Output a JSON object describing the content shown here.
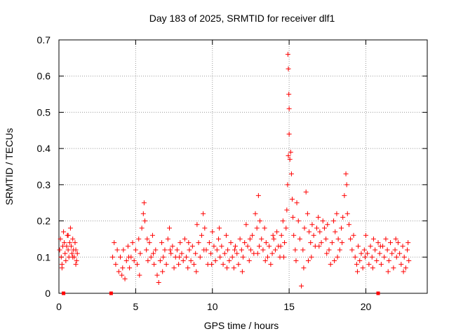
{
  "chart_data": {
    "type": "scatter",
    "title": "Day 183 of 2025, SRMTID for receiver dlf1",
    "xlabel": "GPS time / hours",
    "ylabel": "SRMTID / TECUs",
    "xlim": [
      0,
      24
    ],
    "ylim": [
      0,
      0.7
    ],
    "xticks": [
      0,
      5,
      10,
      15,
      20
    ],
    "yticks": [
      0,
      0.1,
      0.2,
      0.3,
      0.4,
      0.5,
      0.6,
      0.7
    ],
    "ytick_labels": [
      "0",
      "0.1",
      "0.2",
      "0.3",
      "0.4",
      "0.5",
      "0.6",
      "0.7"
    ],
    "grid": true,
    "marker": "plus",
    "color": "#ff0000",
    "zero_markers_x": [
      0.3,
      3.4,
      20.8
    ],
    "series": [
      {
        "name": "dlf1",
        "points": [
          [
            0.05,
            0.12
          ],
          [
            0.1,
            0.15
          ],
          [
            0.15,
            0.1
          ],
          [
            0.2,
            0.08
          ],
          [
            0.25,
            0.13
          ],
          [
            0.3,
            0.17
          ],
          [
            0.35,
            0.14
          ],
          [
            0.4,
            0.11
          ],
          [
            0.45,
            0.09
          ],
          [
            0.5,
            0.13
          ],
          [
            0.55,
            0.16
          ],
          [
            0.6,
            0.12
          ],
          [
            0.65,
            0.1
          ],
          [
            0.7,
            0.14
          ],
          [
            0.75,
            0.18
          ],
          [
            0.8,
            0.13
          ],
          [
            0.85,
            0.11
          ],
          [
            0.9,
            0.15
          ],
          [
            0.95,
            0.12
          ],
          [
            1.0,
            0.1
          ],
          [
            1.05,
            0.14
          ],
          [
            1.1,
            0.12
          ],
          [
            1.15,
            0.09
          ],
          [
            1.2,
            0.11
          ],
          [
            0.2,
            0.07
          ],
          [
            0.6,
            0.16
          ],
          [
            0.9,
            0.1
          ],
          [
            1.1,
            0.08
          ],
          [
            3.5,
            0.1
          ],
          [
            3.6,
            0.14
          ],
          [
            3.7,
            0.08
          ],
          [
            3.8,
            0.12
          ],
          [
            3.9,
            0.06
          ],
          [
            4.0,
            0.1
          ],
          [
            4.1,
            0.05
          ],
          [
            4.2,
            0.12
          ],
          [
            4.3,
            0.04
          ],
          [
            4.4,
            0.09
          ],
          [
            4.5,
            0.13
          ],
          [
            4.6,
            0.07
          ],
          [
            4.7,
            0.1
          ],
          [
            4.8,
            0.14
          ],
          [
            4.9,
            0.09
          ],
          [
            5.0,
            0.12
          ],
          [
            5.1,
            0.08
          ],
          [
            5.2,
            0.15
          ],
          [
            5.3,
            0.11
          ],
          [
            5.4,
            0.18
          ],
          [
            5.5,
            0.22
          ],
          [
            5.55,
            0.25
          ],
          [
            5.6,
            0.2
          ],
          [
            5.7,
            0.12
          ],
          [
            5.8,
            0.09
          ],
          [
            5.9,
            0.14
          ],
          [
            6.0,
            0.1
          ],
          [
            6.1,
            0.16
          ],
          [
            6.2,
            0.08
          ],
          [
            6.3,
            0.12
          ],
          [
            6.4,
            0.05
          ],
          [
            6.5,
            0.03
          ],
          [
            6.6,
            0.09
          ],
          [
            6.7,
            0.14
          ],
          [
            6.8,
            0.1
          ],
          [
            6.9,
            0.12
          ],
          [
            7.0,
            0.08
          ],
          [
            7.1,
            0.15
          ],
          [
            7.2,
            0.18
          ],
          [
            7.3,
            0.11
          ],
          [
            7.4,
            0.13
          ],
          [
            7.5,
            0.07
          ],
          [
            7.6,
            0.1
          ],
          [
            7.7,
            0.12
          ],
          [
            7.8,
            0.08
          ],
          [
            7.9,
            0.14
          ],
          [
            8.0,
            0.11
          ],
          [
            8.1,
            0.09
          ],
          [
            8.2,
            0.15
          ],
          [
            8.3,
            0.1
          ],
          [
            8.4,
            0.07
          ],
          [
            8.5,
            0.12
          ],
          [
            8.6,
            0.09
          ],
          [
            8.7,
            0.13
          ],
          [
            8.8,
            0.08
          ],
          [
            8.9,
            0.11
          ],
          [
            9.0,
            0.19
          ],
          [
            9.1,
            0.14
          ],
          [
            9.2,
            0.1
          ],
          [
            9.3,
            0.16
          ],
          [
            9.4,
            0.22
          ],
          [
            9.5,
            0.18
          ],
          [
            9.6,
            0.12
          ],
          [
            9.7,
            0.08
          ],
          [
            9.8,
            0.14
          ],
          [
            9.9,
            0.11
          ],
          [
            10.0,
            0.17
          ],
          [
            10.1,
            0.13
          ],
          [
            10.2,
            0.09
          ],
          [
            10.3,
            0.12
          ],
          [
            10.4,
            0.15
          ],
          [
            10.5,
            0.1
          ],
          [
            10.6,
            0.13
          ],
          [
            10.7,
            0.08
          ],
          [
            10.8,
            0.11
          ],
          [
            10.9,
            0.16
          ],
          [
            11.0,
            0.12
          ],
          [
            11.1,
            0.09
          ],
          [
            11.2,
            0.14
          ],
          [
            11.3,
            0.1
          ],
          [
            11.4,
            0.07
          ],
          [
            11.5,
            0.13
          ],
          [
            11.6,
            0.11
          ],
          [
            11.7,
            0.08
          ],
          [
            11.8,
            0.15
          ],
          [
            11.9,
            0.12
          ],
          [
            12.0,
            0.1
          ],
          [
            12.1,
            0.14
          ],
          [
            12.2,
            0.19
          ],
          [
            12.3,
            0.13
          ],
          [
            12.4,
            0.09
          ],
          [
            12.5,
            0.12
          ],
          [
            12.6,
            0.16
          ],
          [
            12.7,
            0.11
          ],
          [
            12.8,
            0.22
          ],
          [
            12.9,
            0.18
          ],
          [
            13.0,
            0.27
          ],
          [
            13.1,
            0.2
          ],
          [
            13.2,
            0.15
          ],
          [
            13.3,
            0.12
          ],
          [
            13.4,
            0.18
          ],
          [
            13.5,
            0.14
          ],
          [
            13.6,
            0.1
          ],
          [
            13.7,
            0.13
          ],
          [
            13.8,
            0.08
          ],
          [
            13.9,
            0.11
          ],
          [
            14.0,
            0.15
          ],
          [
            14.1,
            0.12
          ],
          [
            14.2,
            0.17
          ],
          [
            14.3,
            0.13
          ],
          [
            14.4,
            0.1
          ],
          [
            14.5,
            0.16
          ],
          [
            14.6,
            0.2
          ],
          [
            14.7,
            0.14
          ],
          [
            14.8,
            0.18
          ],
          [
            14.85,
            0.23
          ],
          [
            14.9,
            0.3
          ],
          [
            14.95,
            0.38
          ],
          [
            15.0,
            0.44
          ],
          [
            15.0,
            0.51
          ],
          [
            14.98,
            0.55
          ],
          [
            14.95,
            0.62
          ],
          [
            14.92,
            0.66
          ],
          [
            15.05,
            0.37
          ],
          [
            15.1,
            0.39
          ],
          [
            15.15,
            0.33
          ],
          [
            15.2,
            0.26
          ],
          [
            15.25,
            0.21
          ],
          [
            15.3,
            0.16
          ],
          [
            15.4,
            0.12
          ],
          [
            15.5,
            0.25
          ],
          [
            15.6,
            0.2
          ],
          [
            15.7,
            0.15
          ],
          [
            15.8,
            0.02
          ],
          [
            15.9,
            0.12
          ],
          [
            16.0,
            0.18
          ],
          [
            16.1,
            0.28
          ],
          [
            16.2,
            0.22
          ],
          [
            16.3,
            0.17
          ],
          [
            16.4,
            0.14
          ],
          [
            16.5,
            0.19
          ],
          [
            16.6,
            0.16
          ],
          [
            16.7,
            0.13
          ],
          [
            16.8,
            0.18
          ],
          [
            16.9,
            0.21
          ],
          [
            17.0,
            0.17
          ],
          [
            17.1,
            0.14
          ],
          [
            17.2,
            0.2
          ],
          [
            17.3,
            0.18
          ],
          [
            17.4,
            0.15
          ],
          [
            17.5,
            0.19
          ],
          [
            17.6,
            0.12
          ],
          [
            17.7,
            0.08
          ],
          [
            17.8,
            0.14
          ],
          [
            17.9,
            0.2
          ],
          [
            18.0,
            0.17
          ],
          [
            18.1,
            0.22
          ],
          [
            18.2,
            0.15
          ],
          [
            18.3,
            0.12
          ],
          [
            18.4,
            0.18
          ],
          [
            18.5,
            0.21
          ],
          [
            18.6,
            0.27
          ],
          [
            18.7,
            0.33
          ],
          [
            18.75,
            0.3
          ],
          [
            18.8,
            0.22
          ],
          [
            18.9,
            0.19
          ],
          [
            19.0,
            0.15
          ],
          [
            19.1,
            0.12
          ],
          [
            19.2,
            0.16
          ],
          [
            19.3,
            0.1
          ],
          [
            19.4,
            0.08
          ],
          [
            19.5,
            0.13
          ],
          [
            19.6,
            0.09
          ],
          [
            19.7,
            0.11
          ],
          [
            19.8,
            0.07
          ],
          [
            19.9,
            0.12
          ],
          [
            20.0,
            0.16
          ],
          [
            20.1,
            0.11
          ],
          [
            20.2,
            0.08
          ],
          [
            20.3,
            0.13
          ],
          [
            20.4,
            0.1
          ],
          [
            20.5,
            0.15
          ],
          [
            20.6,
            0.12
          ],
          [
            20.7,
            0.09
          ],
          [
            20.8,
            0.14
          ],
          [
            20.9,
            0.11
          ],
          [
            21.0,
            0.08
          ],
          [
            21.1,
            0.13
          ],
          [
            21.2,
            0.1
          ],
          [
            21.3,
            0.15
          ],
          [
            21.4,
            0.12
          ],
          [
            21.5,
            0.09
          ],
          [
            21.6,
            0.14
          ],
          [
            21.7,
            0.11
          ],
          [
            21.8,
            0.07
          ],
          [
            21.9,
            0.12
          ],
          [
            22.0,
            0.1
          ],
          [
            22.1,
            0.14
          ],
          [
            22.2,
            0.11
          ],
          [
            22.3,
            0.08
          ],
          [
            22.4,
            0.13
          ],
          [
            22.5,
            0.1
          ],
          [
            22.6,
            0.07
          ],
          [
            22.7,
            0.12
          ],
          [
            22.8,
            0.09
          ],
          [
            4.15,
            0.07
          ],
          [
            4.55,
            0.1
          ],
          [
            5.25,
            0.05
          ],
          [
            5.75,
            0.15
          ],
          [
            6.15,
            0.11
          ],
          [
            6.75,
            0.06
          ],
          [
            7.25,
            0.12
          ],
          [
            7.85,
            0.1
          ],
          [
            8.45,
            0.14
          ],
          [
            8.95,
            0.06
          ],
          [
            9.45,
            0.12
          ],
          [
            9.95,
            0.08
          ],
          [
            10.45,
            0.18
          ],
          [
            10.95,
            0.07
          ],
          [
            11.45,
            0.12
          ],
          [
            11.95,
            0.06
          ],
          [
            12.45,
            0.15
          ],
          [
            12.95,
            0.11
          ],
          [
            13.45,
            0.09
          ],
          [
            13.95,
            0.16
          ],
          [
            14.45,
            0.13
          ],
          [
            15.45,
            0.09
          ],
          [
            15.95,
            0.07
          ],
          [
            16.45,
            0.1
          ],
          [
            16.95,
            0.13
          ],
          [
            17.45,
            0.11
          ],
          [
            17.95,
            0.09
          ],
          [
            18.45,
            0.14
          ],
          [
            19.45,
            0.06
          ],
          [
            19.95,
            0.1
          ],
          [
            20.45,
            0.07
          ],
          [
            20.95,
            0.13
          ],
          [
            21.45,
            0.06
          ],
          [
            21.95,
            0.15
          ],
          [
            22.45,
            0.06
          ],
          [
            22.75,
            0.14
          ],
          [
            14.65,
            0.1
          ],
          [
            13.05,
            0.13
          ],
          [
            16.25,
            0.09
          ],
          [
            18.15,
            0.1
          ]
        ]
      }
    ]
  }
}
